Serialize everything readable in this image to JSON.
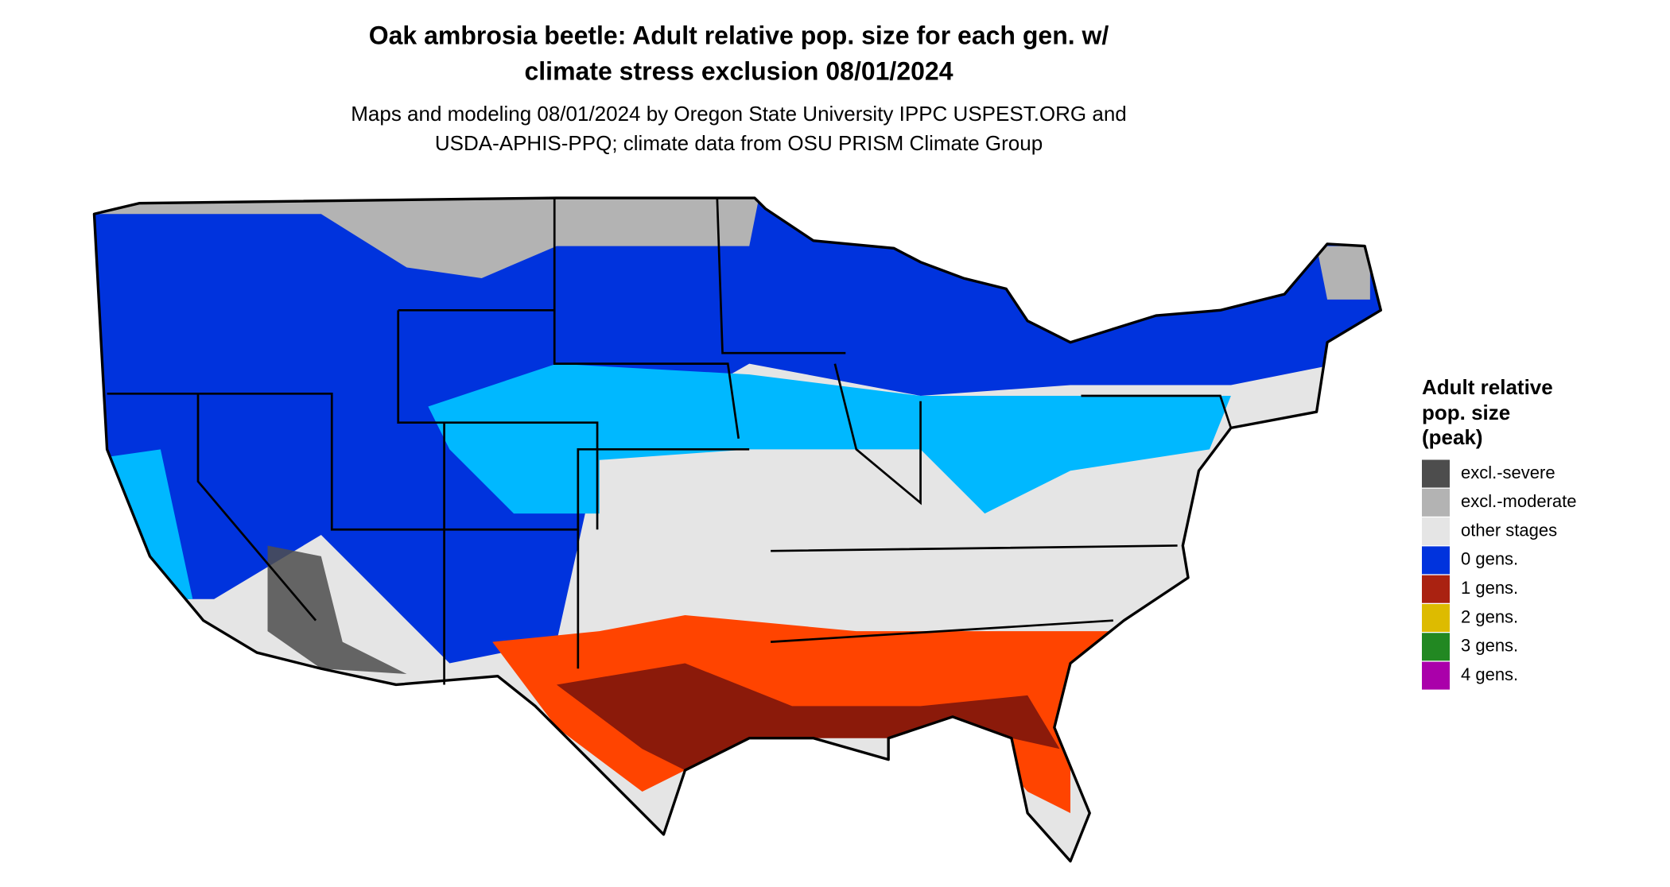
{
  "header": {
    "title": [
      "Oak ambrosia beetle: Adult relative pop. size for each gen. w/",
      "climate stress exclusion 08/01/2024"
    ],
    "subtitle": [
      "Maps and modeling 08/01/2024 by Oregon State University IPPC USPEST.ORG and",
      "USDA-APHIS-PPQ; climate data from OSU PRISM Climate Group"
    ]
  },
  "legend": {
    "title": [
      "Adult relative",
      "pop. size",
      "(peak)"
    ],
    "items": [
      {
        "label": "excl.-severe",
        "color": "#4d4d4d"
      },
      {
        "label": "excl.-moderate",
        "color": "#b3b3b3"
      },
      {
        "label": "other stages",
        "color": "#e5e5e5"
      },
      {
        "label": "0 gens.",
        "color": "#0033dd"
      },
      {
        "label": "1 gens.",
        "color": "#aa2211"
      },
      {
        "label": "2 gens.",
        "color": "#ddbb00"
      },
      {
        "label": "3 gens.",
        "color": "#228822"
      },
      {
        "label": "4 gens.",
        "color": "#aa00aa"
      }
    ]
  }
}
